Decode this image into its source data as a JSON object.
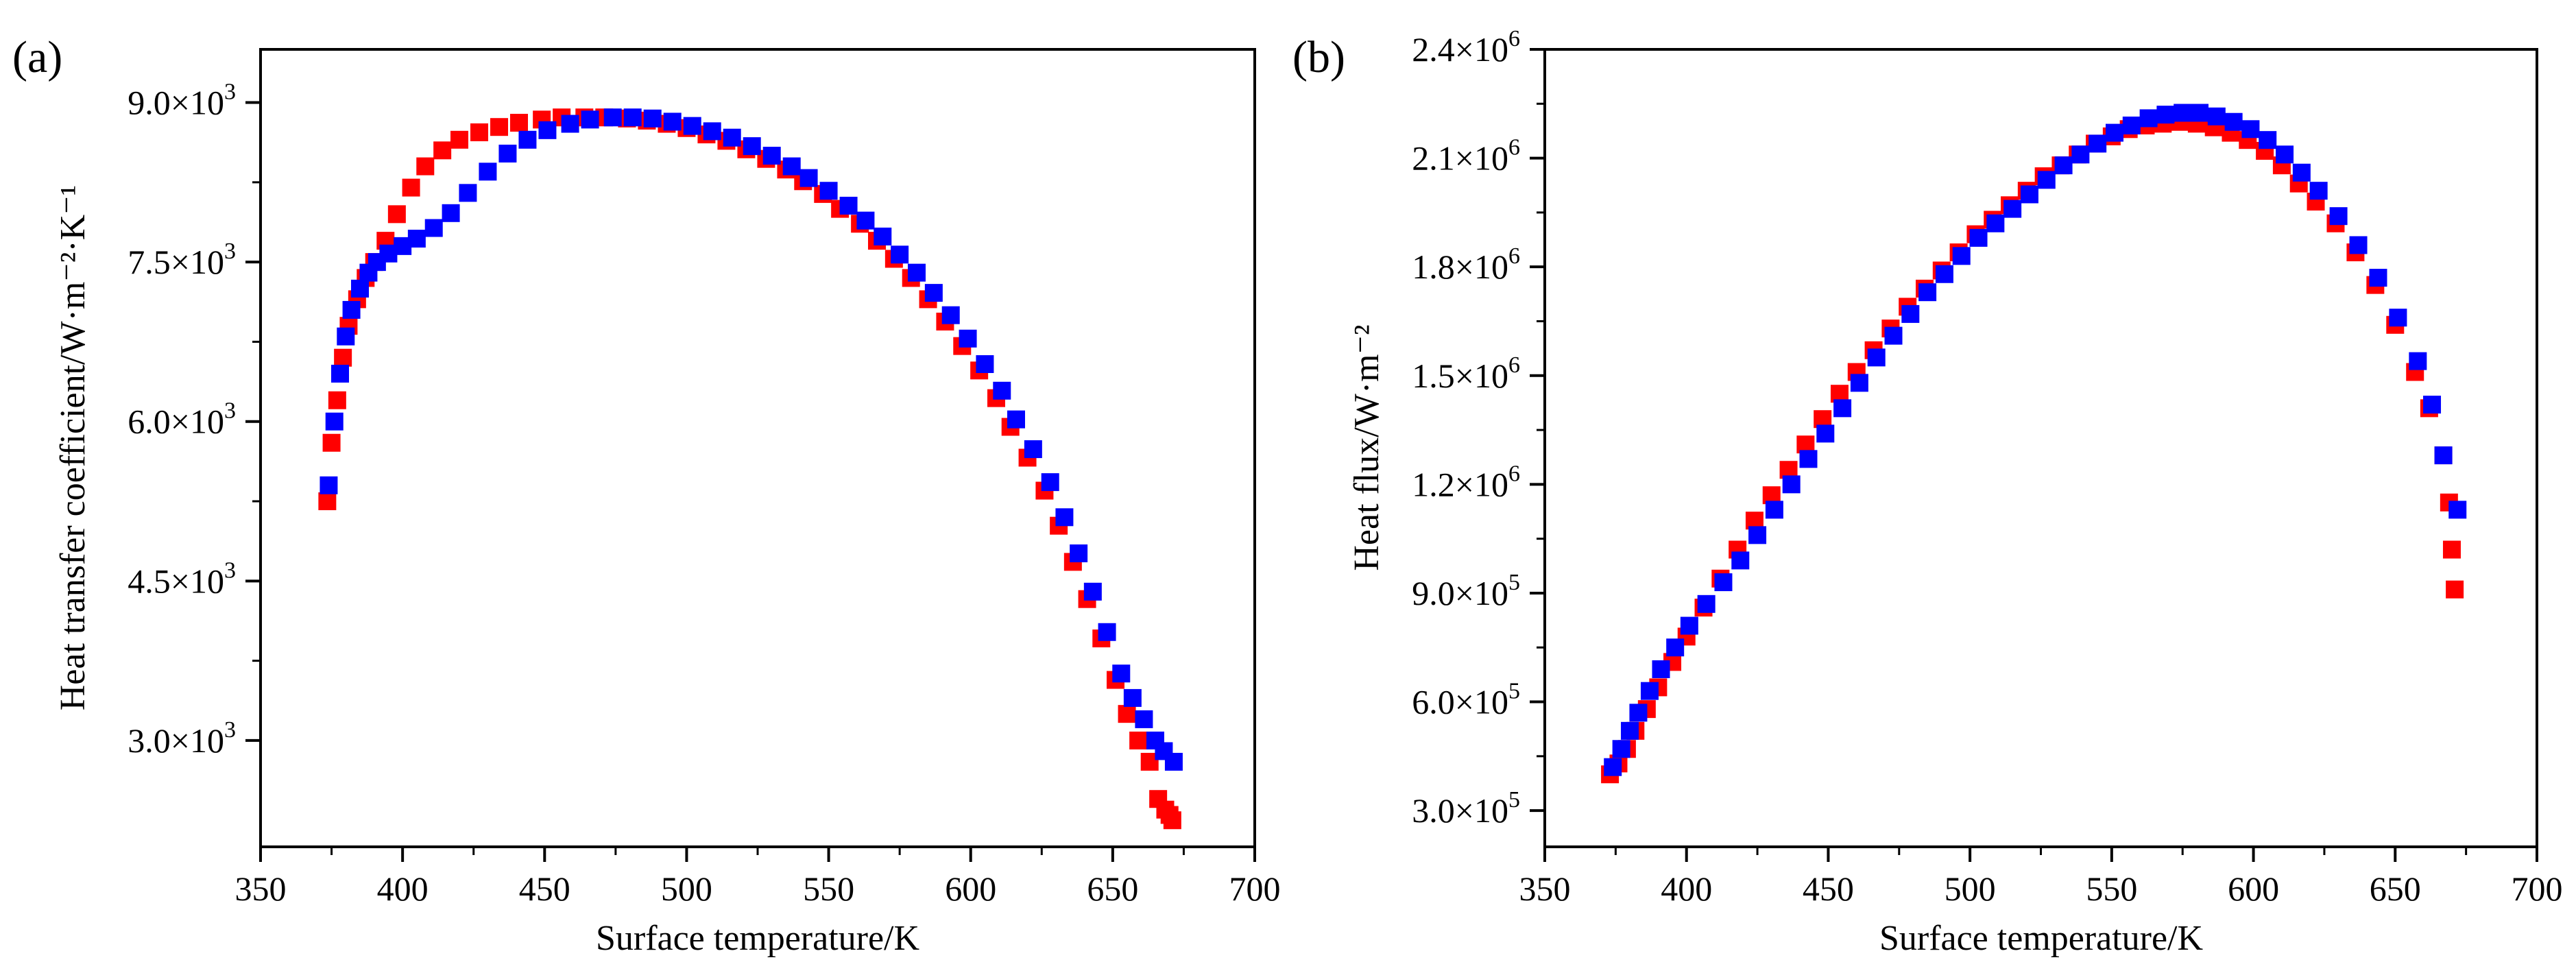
{
  "figure": {
    "panel_labels": [
      "(a)",
      "(b)"
    ]
  },
  "colors": {
    "series_red": "#ff0000",
    "series_blue": "#0000ff",
    "axis": "#000000"
  },
  "chart_data": [
    {
      "type": "scatter",
      "panel": "(a)",
      "xlabel": "Surface temperature/K",
      "ylabel": "Heat transfer coefficient/W·m⁻²·K⁻¹",
      "xlim": [
        350,
        700
      ],
      "ylim": [
        2000,
        9500
      ],
      "xticks": [
        350,
        400,
        450,
        500,
        550,
        600,
        650,
        700
      ],
      "xtick_labels": [
        "350",
        "400",
        "450",
        "500",
        "550",
        "600",
        "650",
        "700"
      ],
      "yticks": [
        3000,
        4500,
        6000,
        7500,
        9000
      ],
      "ytick_mantissas": [
        "3.0×10",
        "4.5×10",
        "6.0×10",
        "7.5×10",
        "9.0×10"
      ],
      "ytick_exponents": [
        "3",
        "3",
        "3",
        "3",
        "3"
      ],
      "grid": false,
      "series": [
        {
          "name": "red",
          "color": "#ff0000",
          "marker": "square",
          "x": [
            373.5,
            375,
            377,
            379,
            381,
            384,
            387,
            390,
            394,
            398,
            403,
            408,
            414,
            420,
            427,
            434,
            441,
            449,
            456,
            464,
            471,
            479,
            486,
            493,
            500,
            507,
            514,
            521,
            528,
            535,
            541,
            548,
            554,
            561,
            567,
            573,
            579,
            585,
            591,
            597,
            603,
            609,
            614,
            620,
            626,
            631,
            636,
            641,
            646,
            651,
            655,
            659,
            663,
            666,
            668.5,
            670,
            671
          ],
          "y": [
            5250,
            5800,
            6200,
            6600,
            6900,
            7150,
            7350,
            7500,
            7700,
            7950,
            8200,
            8400,
            8550,
            8650,
            8720,
            8770,
            8810,
            8840,
            8860,
            8860,
            8860,
            8850,
            8830,
            8800,
            8760,
            8700,
            8640,
            8560,
            8470,
            8370,
            8260,
            8140,
            8000,
            7860,
            7700,
            7530,
            7350,
            7150,
            6940,
            6710,
            6480,
            6220,
            5950,
            5660,
            5350,
            5020,
            4680,
            4330,
            3960,
            3570,
            3250,
            3000,
            2800,
            2450,
            2350,
            2300,
            2250
          ]
        },
        {
          "name": "blue",
          "color": "#0000ff",
          "marker": "square",
          "x": [
            374,
            376,
            378,
            380,
            382,
            385,
            388,
            391,
            395,
            400,
            405,
            411,
            417,
            423,
            430,
            437,
            444,
            451,
            459,
            466,
            474,
            481,
            488,
            495,
            502,
            509,
            516,
            523,
            530,
            537,
            543,
            550,
            557,
            563,
            569,
            575,
            581,
            587,
            593,
            599,
            605,
            611,
            616,
            622,
            628,
            633,
            638,
            643,
            648,
            653,
            657,
            661,
            665,
            668,
            671.5
          ],
          "y": [
            5400,
            6000,
            6450,
            6800,
            7050,
            7250,
            7400,
            7500,
            7580,
            7650,
            7720,
            7820,
            7960,
            8150,
            8350,
            8520,
            8650,
            8740,
            8800,
            8840,
            8860,
            8860,
            8850,
            8820,
            8780,
            8730,
            8670,
            8590,
            8500,
            8400,
            8290,
            8170,
            8030,
            7890,
            7740,
            7570,
            7400,
            7210,
            7000,
            6780,
            6540,
            6290,
            6020,
            5740,
            5430,
            5100,
            4760,
            4400,
            4020,
            3630,
            3400,
            3200,
            3000,
            2900,
            2800
          ]
        }
      ]
    },
    {
      "type": "scatter",
      "panel": "(b)",
      "xlabel": "Surface temperature/K",
      "ylabel": "Heat flux/W·m⁻²",
      "xlim": [
        350,
        700
      ],
      "ylim": [
        200000,
        2400000
      ],
      "xticks": [
        350,
        400,
        450,
        500,
        550,
        600,
        650,
        700
      ],
      "xtick_labels": [
        "350",
        "400",
        "450",
        "500",
        "550",
        "600",
        "650",
        "700"
      ],
      "yticks": [
        300000,
        600000,
        900000,
        1200000,
        1500000,
        1800000,
        2100000,
        2400000
      ],
      "ytick_mantissas": [
        "3.0×10",
        "6.0×10",
        "9.0×10",
        "1.2×10",
        "1.5×10",
        "1.8×10",
        "2.1×10",
        "2.4×10"
      ],
      "ytick_exponents": [
        "5",
        "5",
        "5",
        "6",
        "6",
        "6",
        "6",
        "6"
      ],
      "grid": false,
      "series": [
        {
          "name": "red",
          "color": "#ff0000",
          "marker": "square",
          "x": [
            373,
            376,
            379,
            382,
            386,
            390,
            395,
            400,
            406,
            412,
            418,
            424,
            430,
            436,
            442,
            448,
            454,
            460,
            466,
            472,
            478,
            484,
            490,
            496,
            502,
            508,
            514,
            520,
            526,
            532,
            538,
            544,
            550,
            556,
            562,
            568,
            574,
            580,
            586,
            592,
            598,
            604,
            610,
            616,
            622,
            629,
            636,
            643,
            650,
            657,
            662,
            667,
            669,
            670,
            671
          ],
          "y": [
            400000,
            430000,
            470000,
            520000,
            580000,
            640000,
            710000,
            780000,
            860000,
            940000,
            1020000,
            1100000,
            1170000,
            1240000,
            1310000,
            1380000,
            1450000,
            1510000,
            1570000,
            1630000,
            1690000,
            1740000,
            1790000,
            1840000,
            1890000,
            1930000,
            1970000,
            2010000,
            2050000,
            2080000,
            2110000,
            2140000,
            2160000,
            2180000,
            2190000,
            2195000,
            2200000,
            2195000,
            2185000,
            2170000,
            2150000,
            2120000,
            2080000,
            2030000,
            1980000,
            1920000,
            1840000,
            1750000,
            1640000,
            1510000,
            1410000,
            1280000,
            1150000,
            1020000,
            910000
          ]
        },
        {
          "name": "blue",
          "color": "#0000ff",
          "marker": "square",
          "x": [
            374,
            377,
            380,
            383,
            387,
            391,
            396,
            401,
            407,
            413,
            419,
            425,
            431,
            437,
            443,
            449,
            455,
            461,
            467,
            473,
            479,
            485,
            491,
            497,
            503,
            509,
            515,
            521,
            527,
            533,
            539,
            545,
            551,
            557,
            563,
            569,
            575,
            581,
            587,
            593,
            599,
            605,
            611,
            617,
            623,
            630,
            637,
            644,
            651,
            658,
            663,
            667,
            672
          ],
          "y": [
            420000,
            470000,
            520000,
            570000,
            630000,
            690000,
            750000,
            810000,
            870000,
            930000,
            990000,
            1060000,
            1130000,
            1200000,
            1270000,
            1340000,
            1410000,
            1480000,
            1550000,
            1610000,
            1670000,
            1730000,
            1780000,
            1830000,
            1880000,
            1920000,
            1960000,
            2000000,
            2040000,
            2080000,
            2110000,
            2140000,
            2170000,
            2190000,
            2210000,
            2220000,
            2225000,
            2225000,
            2215000,
            2200000,
            2180000,
            2150000,
            2110000,
            2060000,
            2010000,
            1940000,
            1860000,
            1770000,
            1660000,
            1540000,
            1420000,
            1280000,
            1130000
          ]
        }
      ]
    }
  ]
}
